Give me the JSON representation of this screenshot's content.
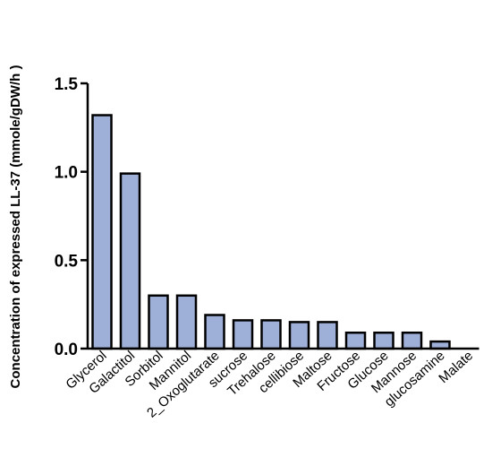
{
  "chart_data": {
    "type": "bar",
    "title": "",
    "xlabel": "",
    "ylabel": "Concentration of expressed LL-37 (mmole/gDW/h )",
    "ylim": [
      0,
      1.5
    ],
    "yticks": [
      "0.0",
      "0.5",
      "1.0",
      "1.5"
    ],
    "ytick_values": [
      0,
      0.5,
      1.0,
      1.5
    ],
    "categories": [
      "Glycerol",
      "Galactitol",
      "Sorbitol",
      "Mannitol",
      "2_Oxoglutarate",
      "sucrose",
      "Trehalose",
      "cellibiose",
      "Maltose",
      "Fructose",
      "Glucose",
      "Mannose",
      "glucosamine",
      "Malate"
    ],
    "values": [
      1.32,
      0.99,
      0.3,
      0.3,
      0.19,
      0.16,
      0.16,
      0.15,
      0.15,
      0.09,
      0.09,
      0.09,
      0.04,
      0.0
    ],
    "bar_color": "#9fb0d8",
    "bar_edge_color": "#000000",
    "grid": false,
    "legend": "none"
  }
}
